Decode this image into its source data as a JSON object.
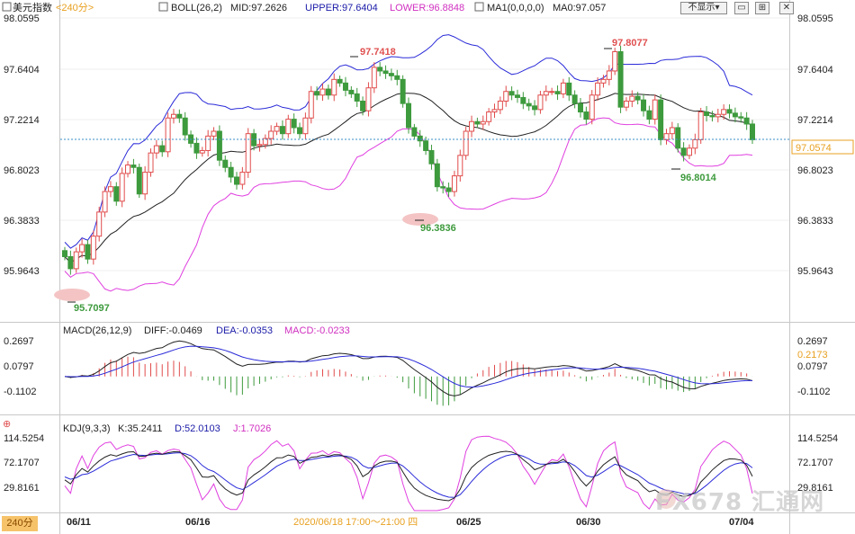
{
  "header": {
    "symbol": "美元指数",
    "period": "<240分>",
    "boll_label": "BOLL(26,2)",
    "boll_mid": "MID:97.2626",
    "boll_upper": "UPPER:97.6404",
    "boll_lower": "LOWER:96.8848",
    "ma_label": "MA1(0,0,0,0)",
    "ma_value": "MA0:97.057",
    "show_select": "不显示",
    "show_select_caret": "▾"
  },
  "macd_header": {
    "label": "MACD(26,12,9)",
    "diff": "DIFF:-0.0469",
    "dea": "DEA:-0.0353",
    "macd": "MACD:-0.0233"
  },
  "kdj_header": {
    "label": "KDJ(9,3,3)",
    "k": "K:35.2411",
    "d": "D:52.0103",
    "j": "J:1.7026"
  },
  "axes": {
    "main_ticks": [
      "98.0595",
      "97.6404",
      "97.2214",
      "96.8023",
      "96.3833",
      "95.9643"
    ],
    "current_price": "97.0574",
    "macd_ticks": [
      "0.2697",
      "0.0797",
      "-0.1102"
    ],
    "macd_marker": "0.2173",
    "kdj_ticks": [
      "114.5254",
      "72.1707",
      "29.8161"
    ],
    "x_labels": [
      "06/11",
      "06/16",
      "06/25",
      "06/30",
      "07/04"
    ],
    "crosshair_time": "2020/06/18 17:00～21:00 四"
  },
  "annotations": {
    "high1": "97.7418",
    "high2": "97.8077",
    "low1": "95.7097",
    "low2": "96.3836",
    "low3": "96.8014"
  },
  "period_badge": "240分",
  "watermark": "FX678 汇通网",
  "colors": {
    "up": "#e14b4b",
    "down": "#3d9a3d",
    "boll_band": "#2b2bd9",
    "boll_mid": "#222222",
    "lower_band": "#e040e0",
    "header_blue": "#1a1aa8",
    "header_magenta": "#d030c0",
    "price_line": "#3a8fc9",
    "label_red": "#e05050",
    "label_green": "#3d9a3d",
    "axis_tick_orange": "#e8a020"
  },
  "chart_data": {
    "type": "candlestick",
    "close": [
      96.08,
      95.98,
      96.12,
      96.18,
      96.06,
      96.25,
      96.45,
      96.62,
      96.66,
      96.54,
      96.77,
      96.84,
      96.82,
      96.6,
      96.78,
      96.94,
      97.0,
      96.95,
      97.23,
      97.26,
      97.23,
      97.09,
      97.02,
      96.94,
      96.96,
      97.08,
      97.12,
      96.88,
      96.82,
      96.74,
      96.68,
      96.78,
      97.1,
      97.0,
      97.01,
      97.06,
      97.12,
      97.16,
      97.1,
      97.22,
      97.15,
      97.1,
      97.23,
      97.45,
      97.42,
      97.47,
      97.42,
      97.55,
      97.52,
      97.46,
      97.43,
      97.37,
      97.29,
      97.48,
      97.65,
      97.62,
      97.6,
      97.58,
      97.55,
      97.35,
      97.15,
      97.08,
      97.04,
      96.96,
      96.85,
      96.66,
      96.65,
      96.62,
      96.75,
      96.92,
      97.12,
      97.2,
      97.18,
      97.2,
      97.28,
      97.3,
      97.37,
      97.45,
      97.42,
      97.4,
      97.35,
      97.33,
      97.3,
      97.42,
      97.45,
      97.45,
      97.43,
      97.52,
      97.42,
      97.35,
      97.28,
      97.22,
      97.42,
      97.52,
      97.55,
      97.62,
      97.78,
      97.32,
      97.37,
      97.41,
      97.38,
      97.29,
      97.22,
      97.38,
      97.05,
      97.1,
      97.15,
      96.98,
      96.92,
      96.98,
      97.05,
      97.28,
      97.25,
      97.24,
      97.26,
      97.3,
      97.27,
      97.24,
      97.23,
      97.18,
      97.05
    ],
    "macd_hist_end": -0.0233,
    "macd_range": [
      -0.1102,
      0.2697
    ],
    "kdj_range": [
      29.8161,
      114.5254
    ],
    "main_range": [
      95.9643,
      98.0595
    ],
    "boll": {
      "mid": 97.2626,
      "upper": 97.6404,
      "lower": 96.8848
    },
    "kdj_last": {
      "k": 35.2411,
      "d": 52.0103,
      "j": 1.7026
    },
    "macd_last": {
      "diff": -0.0469,
      "dea": -0.0353,
      "macd": -0.0233
    }
  }
}
